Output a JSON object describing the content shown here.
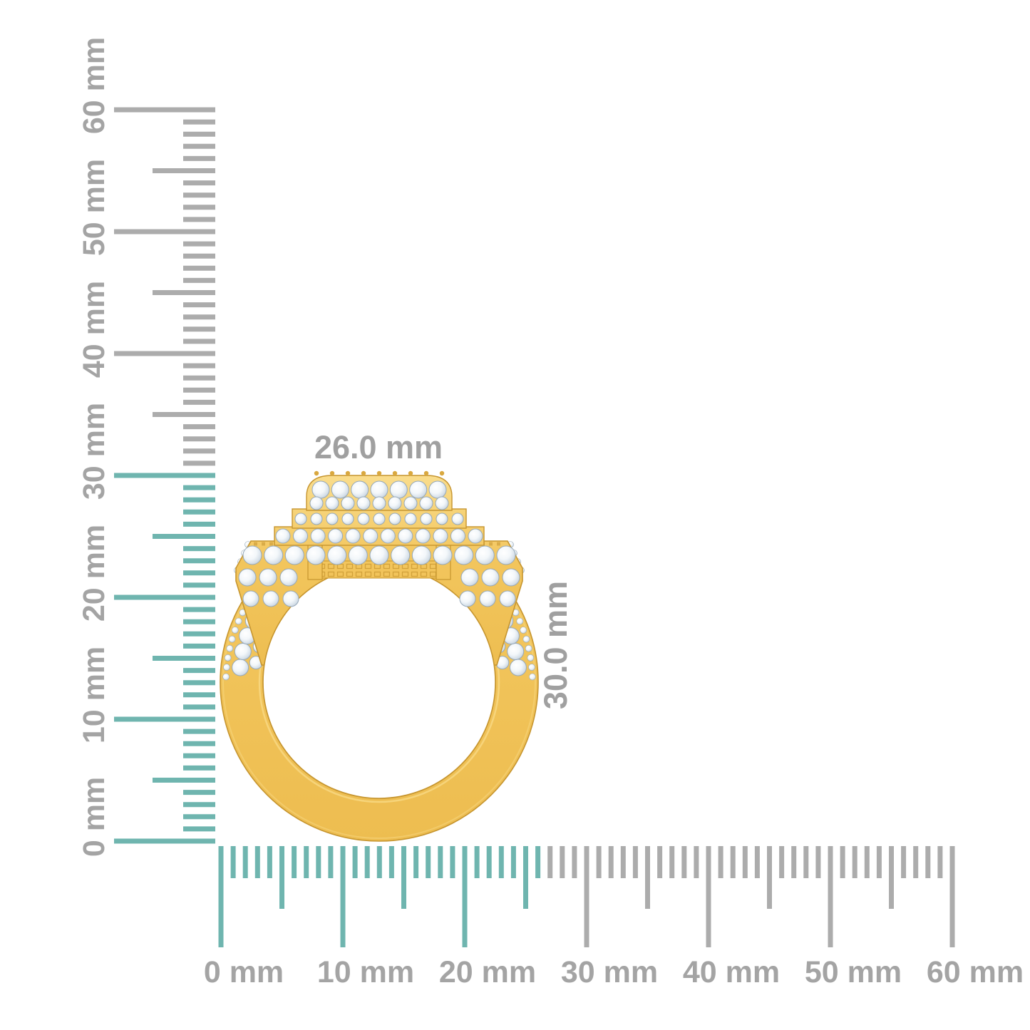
{
  "rulers": {
    "vertical": {
      "unit": "mm",
      "range_mm": [
        0,
        60
      ],
      "tick_labels": [
        "0 mm",
        "10 mm",
        "20 mm",
        "30 mm",
        "40 mm",
        "50 mm",
        "60 mm"
      ],
      "highlight_extent_mm": 30
    },
    "horizontal": {
      "unit": "mm",
      "range_mm": [
        0,
        60
      ],
      "tick_labels": [
        "0 mm",
        "10 mm",
        "20 mm",
        "30 mm",
        "40 mm",
        "50 mm",
        "60 mm"
      ],
      "highlight_extent_mm": 26
    }
  },
  "dimensions": {
    "width_label": "26.0 mm",
    "height_label": "30.0 mm"
  },
  "colors": {
    "background": "#ffffff",
    "ruler_highlight_teal": "#6FB5AF",
    "ruler_tick_gray": "#ACACAC",
    "ruler_label_gray": "#A4A4A4",
    "dimension_label_gray": "#A0A0A0",
    "gold_base": "#F2C55C",
    "gold_mid": "#EDBD50",
    "gold_light": "#FADE8F",
    "gold_dark": "#C6952F",
    "gold_prong": "#D9A83F",
    "diamond_white": "#FFFFFF",
    "diamond_shade": "#B6C5D4",
    "diamond_edge": "#97A9B9"
  }
}
